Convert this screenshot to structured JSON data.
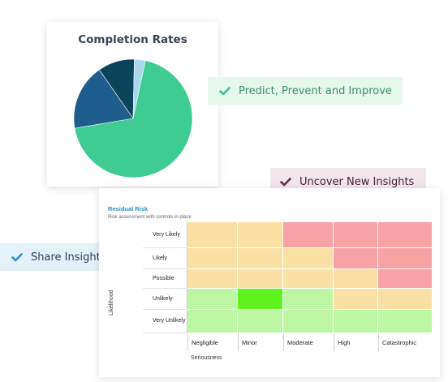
{
  "pie_card": {
    "title": "Completion Rates",
    "chart_data": {
      "type": "pie",
      "title": "Completion Rates",
      "values": [
        69,
        18,
        10,
        3
      ],
      "colors": [
        "#3ecc93",
        "#1f5d8c",
        "#0c445c",
        "#a9d9ea"
      ],
      "start_angle_deg": 12
    }
  },
  "badges": {
    "predict": {
      "label": "Predict, Prevent and Improve",
      "icon": "check-icon",
      "color": "#3ec28a"
    },
    "uncover": {
      "label": "Uncover New Insights",
      "icon": "check-icon",
      "color": "#6b2a4a"
    },
    "share": {
      "label": "Share Insights",
      "icon": "check-icon",
      "color": "#2a8fc9"
    }
  },
  "risk_matrix": {
    "title": "Residual Risk",
    "subtitle": "Risk assessment with controls in place",
    "y_axis_label": "Likelihood",
    "x_axis_label": "Seriousness",
    "columns": [
      "Negligible",
      "Minor",
      "Moderate",
      "High",
      "Catastrophic"
    ],
    "rows": [
      {
        "label": "Very Likely",
        "cells": [
          "amber",
          "amber",
          "red",
          "red",
          "red"
        ]
      },
      {
        "label": "Likely",
        "cells": [
          "amber",
          "amber",
          "amber",
          "red",
          "red"
        ]
      },
      {
        "label": "Possible",
        "cells": [
          "amber",
          "amber",
          "amber",
          "amber",
          "red"
        ]
      },
      {
        "label": "Unlikely",
        "cells": [
          "green",
          "bright-green",
          "green",
          "amber",
          "amber"
        ]
      },
      {
        "label": "Very Unlikely",
        "cells": [
          "green",
          "green",
          "green",
          "green",
          "green"
        ]
      }
    ],
    "cell_colors": {
      "amber": "#fbe0a6",
      "red": "#f8a2a4",
      "green": "#bef7a3",
      "bright-green": "#5ef31c"
    }
  }
}
